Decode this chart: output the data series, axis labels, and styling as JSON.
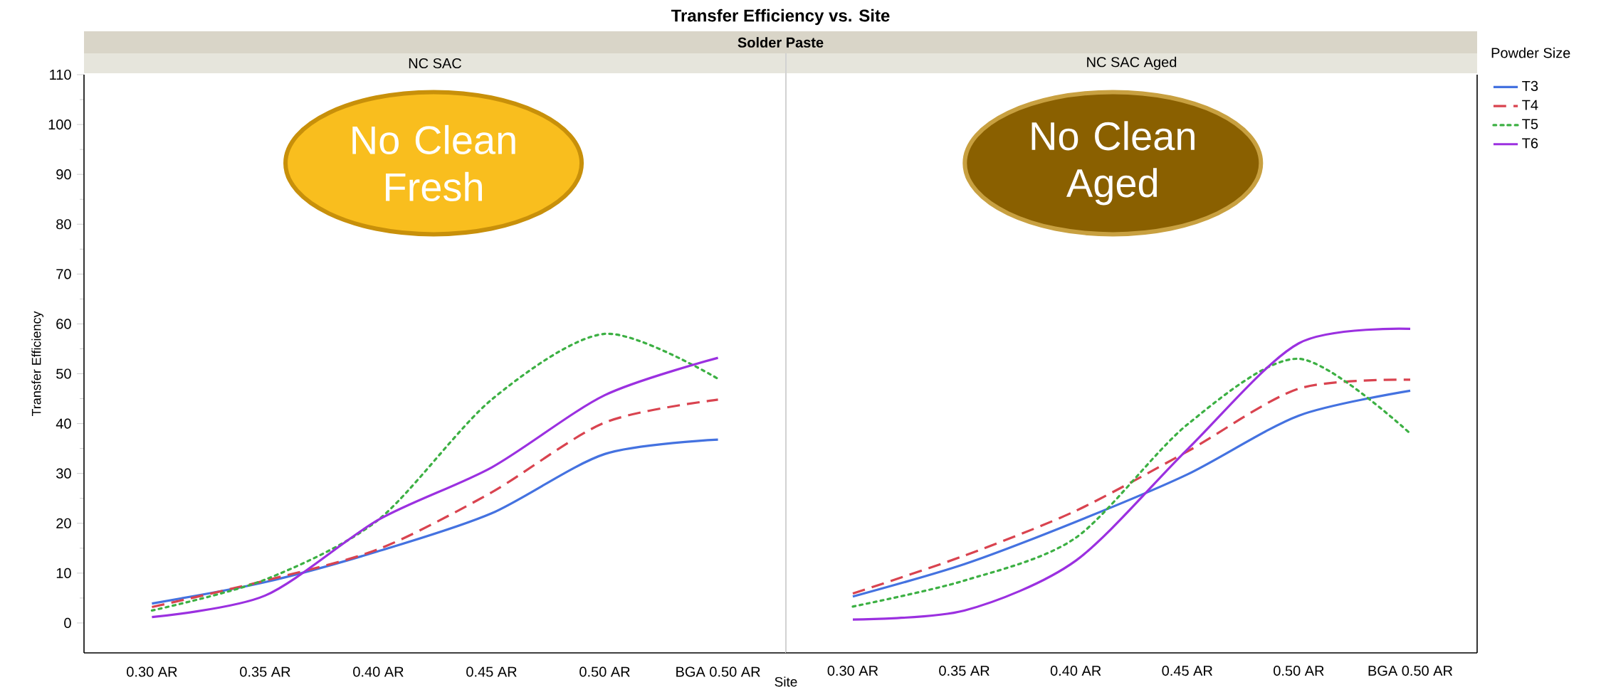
{
  "chart_data": [
    {
      "type": "line",
      "title": "Transfer Efficiency vs. Site",
      "subtitle": "Solder Paste",
      "xlabel": "Site",
      "ylabel": "Transfer Efficiency",
      "annotations": [
        "NC SAC",
        "No Clean Fresh"
      ],
      "categories": [
        "0.30 AR",
        "0.35 AR",
        "0.40 AR",
        "0.45 AR",
        "0.50 AR",
        "BGA 0.50 AR"
      ],
      "series": [
        {
          "color": "#4472e0",
          "line_style": "solid",
          "values": [
            3.9,
            8.2,
            14.4,
            22,
            33.9,
            36.8
          ]
        },
        {
          "color": "#d9434f",
          "line_style": "dashed",
          "values": [
            3.2,
            8.5,
            14.8,
            26.2,
            40.2,
            44.8
          ]
        },
        {
          "color": "#3cb043",
          "line_style": "dotted",
          "values": [
            2.5,
            8.7,
            20.7,
            44.8,
            58,
            49
          ]
        },
        {
          "color": "#9b30e0",
          "line_style": "solid",
          "values": [
            1.2,
            5.5,
            20.7,
            31.2,
            45.7,
            53.2
          ]
        }
      ],
      "ylim": [
        -6,
        110
      ],
      "yticks": [
        0,
        10,
        20,
        30,
        40,
        50,
        60,
        70,
        80,
        90,
        100,
        110
      ],
      "grid": false,
      "legend": false
    },
    {
      "type": "line",
      "annotations": [
        "NC SAC Aged",
        "No Clean Aged"
      ],
      "legend_title": "Powder Size",
      "categories": [
        "0.30 AR",
        "0.35 AR",
        "0.40 AR",
        "0.45 AR",
        "0.50 AR",
        "BGA 0.50 AR"
      ],
      "series": [
        {
          "name": "T3",
          "color": "#4472e0",
          "line_style": "solid",
          "values": [
            5.3,
            11.8,
            20.3,
            29.8,
            41.6,
            46.6
          ]
        },
        {
          "name": "T4",
          "color": "#d9434f",
          "line_style": "dashed",
          "values": [
            5.9,
            13.5,
            22.5,
            34.4,
            47,
            48.8
          ]
        },
        {
          "name": "T5",
          "color": "#3cb043",
          "line_style": "dotted",
          "values": [
            3.3,
            8.5,
            17.1,
            39.8,
            53,
            38
          ]
        },
        {
          "name": "T6",
          "color": "#9b30e0",
          "line_style": "solid",
          "values": [
            0.7,
            2.5,
            12.5,
            34.8,
            56.1,
            59
          ]
        }
      ],
      "ylim": [
        -6,
        110
      ],
      "yticks": [
        0,
        10,
        20,
        30,
        40,
        50,
        60,
        70,
        80,
        90,
        100,
        110
      ],
      "grid": false,
      "legend": "right",
      "tick_labels": "x"
    }
  ]
}
